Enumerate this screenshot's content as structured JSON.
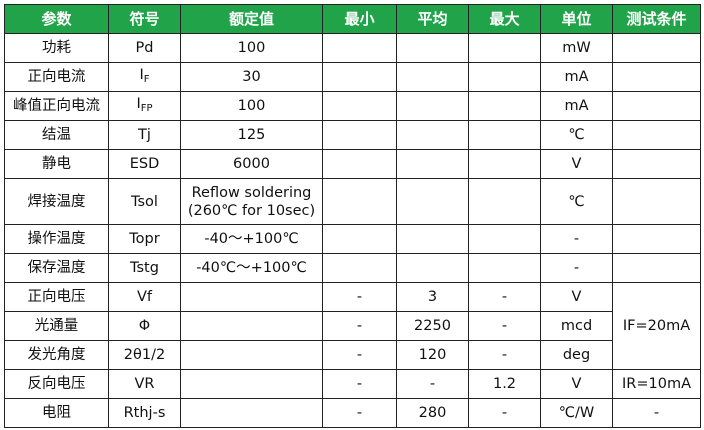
{
  "header_color": "#21a34a",
  "headers": [
    "参数",
    "符号",
    "额定值",
    "最小",
    "平均",
    "最大",
    "单位",
    "测试条件"
  ],
  "rows": [
    {
      "param": "功耗",
      "sym": "Pd",
      "sub": "",
      "rated": "100",
      "min": "",
      "avg": "",
      "max": "",
      "unit": "mW",
      "cond": ""
    },
    {
      "param": "正向电流",
      "sym": "I",
      "sub": "F",
      "rated": "30",
      "min": "",
      "avg": "",
      "max": "",
      "unit": "mA",
      "cond": ""
    },
    {
      "param": "峰值正向电流",
      "sym": "I",
      "sub": "FP",
      "rated": "100",
      "min": "",
      "avg": "",
      "max": "",
      "unit": "mA",
      "cond": ""
    },
    {
      "param": "结温",
      "sym": "Tj",
      "sub": "",
      "rated": "125",
      "min": "",
      "avg": "",
      "max": "",
      "unit": "℃",
      "cond": ""
    },
    {
      "param": "静电",
      "sym": "ESD",
      "sub": "",
      "rated": "6000",
      "min": "",
      "avg": "",
      "max": "",
      "unit": "V",
      "cond": ""
    },
    {
      "param": "焊接温度",
      "sym": "Tsol",
      "sub": "",
      "rated": "Reflow soldering",
      "rated2": "(260℃ for 10sec)",
      "min": "",
      "avg": "",
      "max": "",
      "unit": "℃",
      "cond": ""
    },
    {
      "param": "操作温度",
      "sym": "Topr",
      "sub": "",
      "rated": "-40～+100℃",
      "min": "",
      "avg": "",
      "max": "",
      "unit": "-",
      "cond": ""
    },
    {
      "param": "保存温度",
      "sym": "Tstg",
      "sub": "",
      "rated": "-40℃～+100℃",
      "min": "",
      "avg": "",
      "max": "",
      "unit": "-",
      "cond": ""
    },
    {
      "param": "正向电压",
      "sym": "Vf",
      "sub": "",
      "rated": "",
      "min": "-",
      "avg": "3",
      "max": "-",
      "unit": "V",
      "cond": "IF=20mA"
    },
    {
      "param": "光通量",
      "sym": "Φ",
      "sub": "",
      "rated": "",
      "min": "-",
      "avg": "2250",
      "max": "-",
      "unit": "mcd"
    },
    {
      "param": "发光角度",
      "sym": "2θ1/2",
      "sub": "",
      "rated": "",
      "min": "-",
      "avg": "120",
      "max": "-",
      "unit": "deg"
    },
    {
      "param": "反向电压",
      "sym": "VR",
      "sub": "",
      "rated": "",
      "min": "-",
      "avg": "-",
      "max": "1.2",
      "unit": "V",
      "cond": "IR=10mA"
    },
    {
      "param": "电阻",
      "sym": "Rthj-s",
      "sub": "",
      "rated": "",
      "min": "-",
      "avg": "280",
      "max": "-",
      "unit": "℃/W",
      "cond": "-"
    }
  ]
}
